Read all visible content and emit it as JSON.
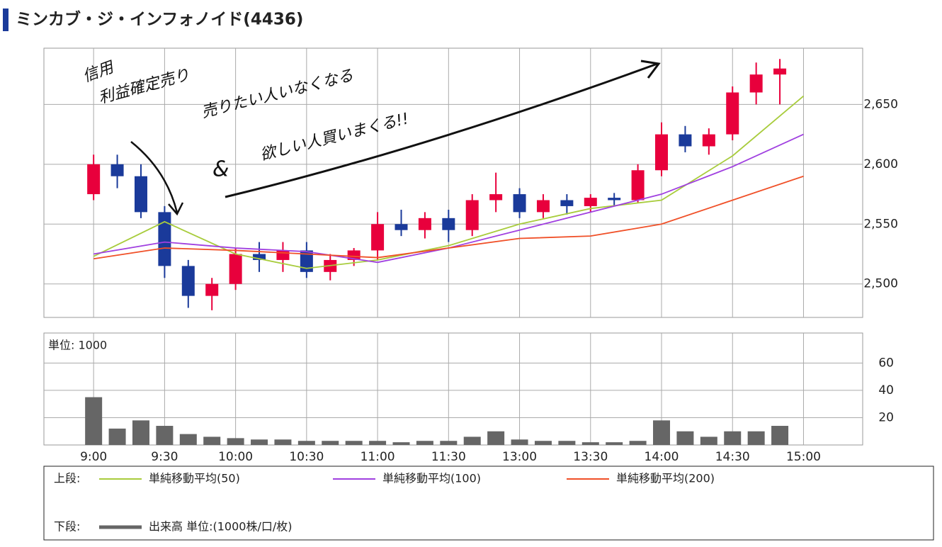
{
  "title": "ミンカブ・ジ・インフォノイド(4436)",
  "annotations": [
    "信用",
    "利益確定売り",
    "売りたい人いなくなる",
    "&",
    "欲しい人買いまくる!!"
  ],
  "legend": {
    "upper_label": "上段:",
    "lower_label": "下段:"
  },
  "chart_data": [
    {
      "type": "candlestick",
      "xlim": [
        -21,
        325
      ],
      "ylim": [
        2472,
        2697
      ],
      "xticks": [
        0,
        30,
        60,
        90,
        120,
        150,
        180,
        210,
        240,
        270,
        300
      ],
      "yticks": [
        {
          "value": 2500,
          "label": "2,500"
        },
        {
          "value": 2550,
          "label": "2,550"
        },
        {
          "value": 2600,
          "label": "2,600"
        },
        {
          "value": 2650,
          "label": "2,650"
        }
      ],
      "grid": true,
      "up_color": "#e8003c",
      "down_color": "#1a3a9a",
      "candles": {
        "x": [
          0,
          10,
          20,
          30,
          40,
          50,
          60,
          70,
          80,
          90,
          100,
          110,
          120,
          130,
          140,
          150,
          160,
          170,
          180,
          190,
          200,
          210,
          220,
          230,
          240,
          250,
          260,
          270,
          280,
          290
        ],
        "open": [
          2575,
          2600,
          2590,
          2560,
          2515,
          2490,
          2500,
          2525,
          2520,
          2528,
          2510,
          2520,
          2528,
          2550,
          2545,
          2555,
          2545,
          2570,
          2575,
          2560,
          2570,
          2565,
          2572,
          2570,
          2595,
          2625,
          2615,
          2625,
          2660,
          2675
        ],
        "high": [
          2608,
          2608,
          2600,
          2565,
          2520,
          2505,
          2530,
          2535,
          2535,
          2535,
          2525,
          2530,
          2560,
          2562,
          2560,
          2562,
          2575,
          2593,
          2580,
          2575,
          2575,
          2575,
          2576,
          2600,
          2635,
          2632,
          2630,
          2665,
          2685,
          2688
        ],
        "low": [
          2570,
          2580,
          2555,
          2505,
          2480,
          2478,
          2495,
          2510,
          2510,
          2505,
          2503,
          2515,
          2520,
          2540,
          2538,
          2535,
          2540,
          2560,
          2555,
          2555,
          2558,
          2560,
          2565,
          2568,
          2590,
          2610,
          2608,
          2620,
          2650,
          2650
        ],
        "close": [
          2600,
          2590,
          2560,
          2515,
          2490,
          2500,
          2525,
          2520,
          2528,
          2510,
          2520,
          2528,
          2550,
          2545,
          2555,
          2545,
          2570,
          2575,
          2560,
          2570,
          2565,
          2572,
          2570,
          2595,
          2625,
          2615,
          2625,
          2660,
          2675,
          2680
        ]
      },
      "series": [
        {
          "name": "単純移動平均(50)",
          "color": "#a8cc3c",
          "x": [
            0,
            30,
            60,
            90,
            120,
            150,
            180,
            210,
            240,
            270,
            300
          ],
          "values": [
            2523,
            2552,
            2525,
            2513,
            2520,
            2532,
            2550,
            2563,
            2570,
            2607,
            2657
          ]
        },
        {
          "name": "単純移動平均(100)",
          "color": "#a040e0",
          "x": [
            0,
            30,
            60,
            90,
            120,
            150,
            180,
            210,
            240,
            270,
            300
          ],
          "values": [
            2525,
            2535,
            2530,
            2527,
            2518,
            2530,
            2545,
            2560,
            2575,
            2598,
            2625
          ]
        },
        {
          "name": "単純移動平均(200)",
          "color": "#f05028",
          "x": [
            0,
            30,
            60,
            90,
            120,
            150,
            180,
            210,
            240,
            270,
            300
          ],
          "values": [
            2521,
            2530,
            2528,
            2525,
            2522,
            2530,
            2538,
            2540,
            2550,
            2570,
            2590
          ]
        }
      ]
    },
    {
      "type": "bar",
      "unit_label": "単位: 1000",
      "xlim": [
        -21,
        325
      ],
      "ylim": [
        0,
        82
      ],
      "xticks": [
        {
          "value": 0,
          "label": "9:00"
        },
        {
          "value": 30,
          "label": "9:30"
        },
        {
          "value": 60,
          "label": "10:00"
        },
        {
          "value": 90,
          "label": "10:30"
        },
        {
          "value": 120,
          "label": "11:00"
        },
        {
          "value": 150,
          "label": "11:30"
        },
        {
          "value": 180,
          "label": "13:00"
        },
        {
          "value": 210,
          "label": "13:30"
        },
        {
          "value": 240,
          "label": "14:00"
        },
        {
          "value": 270,
          "label": "14:30"
        },
        {
          "value": 300,
          "label": "15:00"
        }
      ],
      "yticks": [
        20,
        40,
        60
      ],
      "grid": true,
      "series": [
        {
          "name": "出来高 単位:(1000株/口/枚)",
          "color": "#666666",
          "x": [
            0,
            10,
            20,
            30,
            40,
            50,
            60,
            70,
            80,
            90,
            100,
            110,
            120,
            130,
            140,
            150,
            160,
            170,
            180,
            190,
            200,
            210,
            220,
            230,
            240,
            250,
            260,
            270,
            280,
            290
          ],
          "values": [
            35,
            12,
            18,
            14,
            8,
            6,
            5,
            4,
            4,
            3,
            3,
            3,
            3,
            2,
            3,
            3,
            6,
            10,
            4,
            3,
            3,
            2,
            2,
            3,
            18,
            10,
            6,
            10,
            10,
            14
          ]
        }
      ]
    }
  ]
}
